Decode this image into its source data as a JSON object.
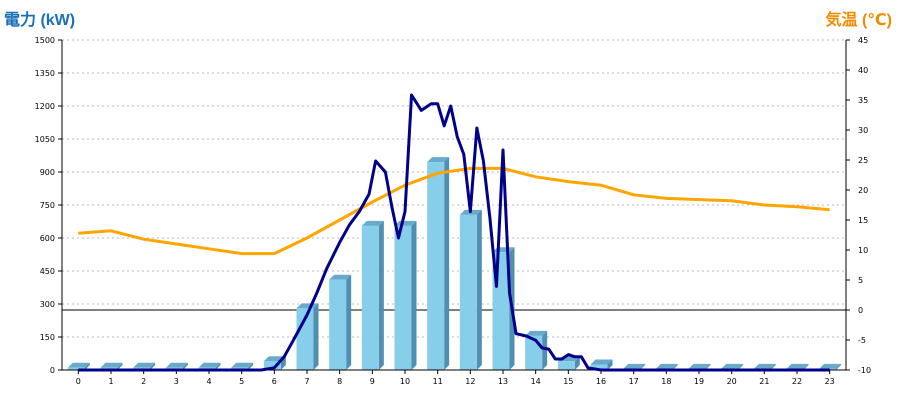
{
  "chart_data": {
    "type": "bar",
    "categories": [
      "0",
      "1",
      "2",
      "3",
      "4",
      "5",
      "6",
      "7",
      "8",
      "9",
      "10",
      "11",
      "12",
      "13",
      "14",
      "15",
      "16",
      "17",
      "18",
      "19",
      "20",
      "21",
      "22",
      "23"
    ],
    "ylabel_left": "電力 (kW)",
    "ylabel_right": "気温 (℃)",
    "y_left": {
      "min": 0,
      "max": 1500,
      "ticks": [
        0,
        150,
        300,
        450,
        600,
        750,
        900,
        1050,
        1200,
        1350,
        1500
      ]
    },
    "y_right": {
      "min": -10,
      "max": 45,
      "ticks": [
        -10,
        -5,
        0,
        5,
        10,
        15,
        20,
        25,
        30,
        35,
        40,
        45
      ]
    },
    "grid": true,
    "bars": {
      "axis": "left",
      "color": "#87ceeb",
      "values": [
        10,
        10,
        10,
        10,
        10,
        10,
        40,
        280,
        410,
        655,
        655,
        945,
        705,
        535,
        155,
        40,
        25,
        5,
        5,
        5,
        5,
        5,
        5,
        5
      ]
    },
    "power_line": {
      "axis": "left",
      "color": "#00008b",
      "x": [
        0,
        5.6,
        6,
        6.3,
        6.6,
        7,
        7.3,
        7.6,
        8,
        8.3,
        8.6,
        8.9,
        9.1,
        9.4,
        9.6,
        9.8,
        10,
        10.2,
        10.5,
        10.8,
        11,
        11.2,
        11.4,
        11.6,
        11.8,
        12,
        12.2,
        12.4,
        12.6,
        12.8,
        13,
        13.2,
        13.4,
        13.7,
        14,
        14.2,
        14.4,
        14.6,
        14.8,
        15,
        15.2,
        15.4,
        15.6,
        16,
        17,
        23
      ],
      "y": [
        0,
        0,
        10,
        60,
        140,
        250,
        350,
        460,
        580,
        660,
        720,
        800,
        950,
        900,
        740,
        600,
        720,
        1250,
        1180,
        1210,
        1210,
        1110,
        1200,
        1060,
        980,
        720,
        1100,
        950,
        690,
        380,
        1000,
        350,
        165,
        155,
        135,
        100,
        95,
        50,
        50,
        70,
        60,
        60,
        10,
        0,
        0,
        0
      ]
    },
    "temperature_line": {
      "axis": "right",
      "color": "#ffa500",
      "x": [
        0,
        1,
        2,
        3,
        4,
        5,
        6,
        7,
        8,
        9,
        10,
        11,
        12,
        13,
        14,
        15,
        16,
        17,
        18,
        19,
        20,
        21,
        22,
        23
      ],
      "y": [
        12.8,
        13.2,
        11.8,
        11,
        10.2,
        9.4,
        9.4,
        12,
        15,
        18,
        20.8,
        22.8,
        23.6,
        23.6,
        22.2,
        21.4,
        20.8,
        19.2,
        18.6,
        18.4,
        18.2,
        17.5,
        17.2,
        16.7
      ]
    }
  }
}
